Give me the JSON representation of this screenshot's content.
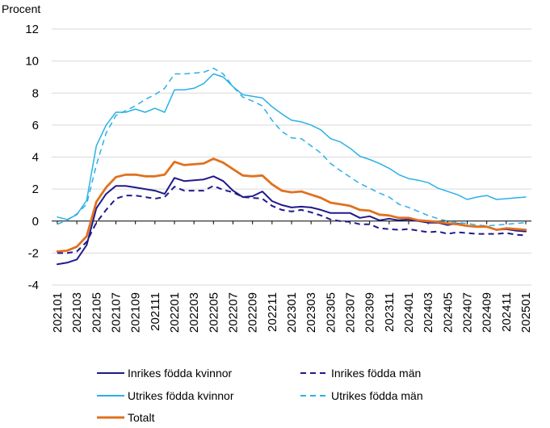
{
  "chart_data": {
    "type": "line",
    "title": "",
    "ylabel": "Procent",
    "xlabel": "",
    "ylim": [
      -4,
      12
    ],
    "yticks": [
      -4,
      -2,
      0,
      2,
      4,
      6,
      8,
      10,
      12
    ],
    "xtick_labels": [
      "202101",
      "202103",
      "202105",
      "202107",
      "202109",
      "202111",
      "202201",
      "202203",
      "202205",
      "202207",
      "202209",
      "202211",
      "202301",
      "202303",
      "202305",
      "202307",
      "202309",
      "202311",
      "202401",
      "202403",
      "202405",
      "202407",
      "202409",
      "202411",
      "202501"
    ],
    "grid": "horizontal",
    "legend_position": "bottom",
    "x": [
      "202101",
      "202102",
      "202103",
      "202104",
      "202105",
      "202106",
      "202107",
      "202108",
      "202109",
      "202110",
      "202111",
      "202112",
      "202201",
      "202202",
      "202203",
      "202204",
      "202205",
      "202206",
      "202207",
      "202208",
      "202209",
      "202210",
      "202211",
      "202212",
      "202301",
      "202302",
      "202303",
      "202304",
      "202305",
      "202306",
      "202307",
      "202308",
      "202309",
      "202310",
      "202311",
      "202312",
      "202401",
      "202402",
      "202403",
      "202404",
      "202405",
      "202406",
      "202407",
      "202408",
      "202409",
      "202410",
      "202411",
      "202412",
      "202501"
    ],
    "series": [
      {
        "name": "Inrikes födda kvinnor",
        "color": "#1f1a8c",
        "dash": "solid",
        "width": 2,
        "values": [
          -2.7,
          -2.6,
          -2.4,
          -1.5,
          0.8,
          1.7,
          2.2,
          2.2,
          2.1,
          2.0,
          1.9,
          1.7,
          2.7,
          2.5,
          2.55,
          2.6,
          2.8,
          2.5,
          1.9,
          1.5,
          1.55,
          1.85,
          1.25,
          1.0,
          0.85,
          0.9,
          0.85,
          0.7,
          0.5,
          0.5,
          0.5,
          0.2,
          0.3,
          0.05,
          0.15,
          0.05,
          0.1,
          0.0,
          -0.1,
          -0.1,
          -0.25,
          -0.15,
          -0.3,
          -0.35,
          -0.35,
          -0.55,
          -0.5,
          -0.6,
          -0.65
        ]
      },
      {
        "name": "Inrikes födda män",
        "color": "#1f1a8c",
        "dash": "dashed",
        "width": 2,
        "values": [
          -2.0,
          -2.0,
          -1.9,
          -1.3,
          -0.1,
          0.7,
          1.4,
          1.6,
          1.6,
          1.5,
          1.4,
          1.5,
          2.15,
          1.9,
          1.9,
          1.9,
          2.2,
          1.95,
          1.8,
          1.5,
          1.45,
          1.4,
          0.95,
          0.7,
          0.6,
          0.7,
          0.55,
          0.35,
          0.1,
          0.0,
          -0.05,
          -0.2,
          -0.2,
          -0.45,
          -0.5,
          -0.55,
          -0.5,
          -0.6,
          -0.7,
          -0.65,
          -0.8,
          -0.7,
          -0.75,
          -0.8,
          -0.8,
          -0.8,
          -0.75,
          -0.85,
          -0.9
        ]
      },
      {
        "name": "Utrikes födda kvinnor",
        "color": "#2bb0e6",
        "dash": "solid",
        "width": 1.5,
        "values": [
          0.25,
          0.1,
          0.4,
          1.3,
          4.7,
          6.0,
          6.8,
          6.8,
          7.0,
          6.8,
          7.05,
          6.8,
          8.2,
          8.2,
          8.3,
          8.6,
          9.2,
          9.0,
          8.4,
          7.9,
          7.8,
          7.7,
          7.15,
          6.7,
          6.3,
          6.2,
          6.0,
          5.7,
          5.15,
          4.95,
          4.55,
          4.05,
          3.85,
          3.6,
          3.3,
          2.9,
          2.65,
          2.55,
          2.4,
          2.05,
          1.85,
          1.65,
          1.35,
          1.5,
          1.6,
          1.35,
          1.4,
          1.45,
          1.5
        ]
      },
      {
        "name": "Utrikes födda män",
        "color": "#2bb0e6",
        "dash": "dashed",
        "width": 1.5,
        "values": [
          -0.2,
          0.05,
          0.45,
          1.05,
          3.5,
          5.5,
          6.6,
          6.9,
          7.2,
          7.6,
          7.9,
          8.3,
          9.2,
          9.2,
          9.25,
          9.3,
          9.55,
          9.2,
          8.4,
          7.75,
          7.5,
          7.2,
          6.3,
          5.6,
          5.2,
          5.15,
          4.7,
          4.25,
          3.6,
          3.15,
          2.75,
          2.35,
          2.05,
          1.75,
          1.5,
          1.05,
          0.85,
          0.6,
          0.35,
          0.15,
          0.0,
          -0.1,
          -0.15,
          -0.25,
          -0.3,
          -0.25,
          -0.2,
          -0.15,
          -0.1
        ]
      },
      {
        "name": "Totalt",
        "color": "#e0711e",
        "dash": "solid",
        "width": 2.8,
        "values": [
          -1.9,
          -1.85,
          -1.6,
          -0.95,
          1.2,
          2.1,
          2.75,
          2.9,
          2.9,
          2.8,
          2.8,
          2.9,
          3.7,
          3.5,
          3.55,
          3.6,
          3.9,
          3.65,
          3.25,
          2.85,
          2.8,
          2.85,
          2.3,
          1.9,
          1.8,
          1.85,
          1.65,
          1.45,
          1.15,
          1.05,
          0.95,
          0.7,
          0.65,
          0.4,
          0.35,
          0.2,
          0.2,
          0.05,
          0.0,
          -0.05,
          -0.15,
          -0.2,
          -0.3,
          -0.35,
          -0.35,
          -0.55,
          -0.45,
          -0.5,
          -0.55
        ]
      }
    ]
  }
}
